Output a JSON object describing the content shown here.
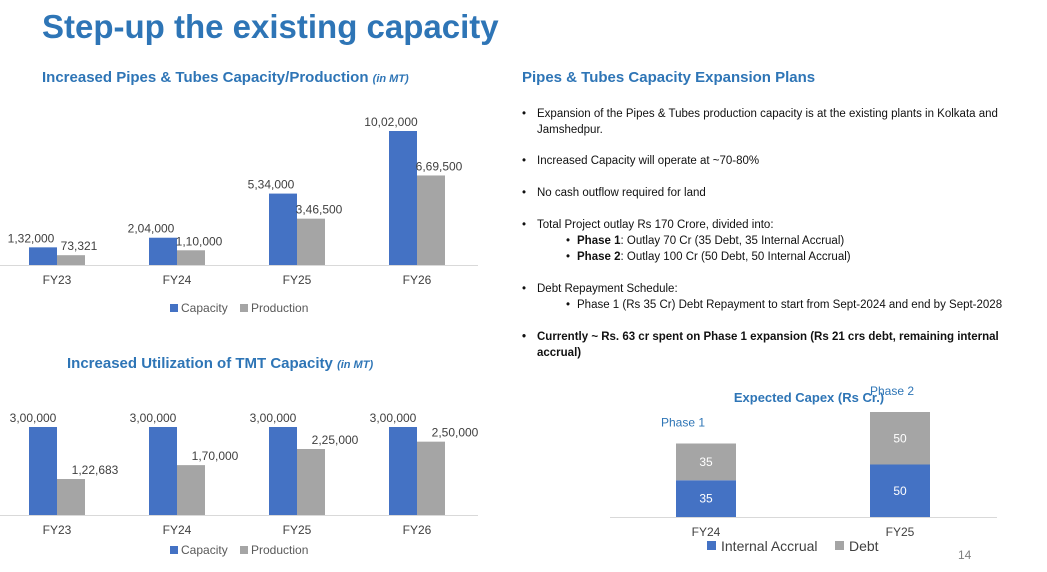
{
  "page": {
    "title": "Step-up the existing capacity",
    "page_number": "14"
  },
  "colors": {
    "capacity": "#4472c4",
    "production": "#a5a5a5",
    "accent": "#2e75b6"
  },
  "pipes_chart": {
    "title": "Increased Pipes & Tubes Capacity/Production",
    "unit": "(in MT)"
  },
  "tmt_chart": {
    "title": "Increased Utilization of TMT Capacity",
    "unit": "(in MT)"
  },
  "plans": {
    "heading": "Pipes & Tubes Capacity Expansion Plans",
    "b1": "Expansion of the Pipes & Tubes production capacity is at the existing plants in Kolkata and Jamshedpur.",
    "b2": "Increased Capacity will operate at ~70-80%",
    "b3": "No cash outflow required for land",
    "b4": "Total Project outlay Rs 170 Crore, divided into:",
    "phase1_label": "Phase 1",
    "phase1_text": ": Outlay 70 Cr (35 Debt, 35 Internal Accrual)",
    "phase2_label": "Phase 2",
    "phase2_text": ": Outlay 100 Cr (50 Debt, 50 Internal Accrual)",
    "b5": "Debt Repayment Schedule:",
    "b5_sub": "Phase 1 (Rs 35 Cr) Debt Repayment to start from Sept-2024 and end by Sept-2028",
    "b6": "Currently ~ Rs. 63 cr spent on Phase 1 expansion (Rs 21 crs debt, remaining internal accrual)"
  },
  "chart_data": [
    {
      "type": "bar",
      "title": "Increased Pipes & Tubes Capacity/Production (in MT)",
      "categories": [
        "FY23",
        "FY24",
        "FY25",
        "FY26"
      ],
      "series": [
        {
          "name": "Capacity",
          "values": [
            132000,
            204000,
            534000,
            1002000
          ],
          "labels": [
            "1,32,000",
            "2,04,000",
            "5,34,000",
            "10,02,000"
          ]
        },
        {
          "name": "Production",
          "values": [
            73321,
            110000,
            346500,
            669500
          ],
          "labels": [
            "73,321",
            "1,10,000",
            "3,46,500",
            "6,69,500"
          ]
        }
      ],
      "ylim": [
        0,
        1002000
      ],
      "legend": "bottom"
    },
    {
      "type": "bar",
      "title": "Increased Utilization of TMT Capacity (in MT)",
      "categories": [
        "FY23",
        "FY24",
        "FY25",
        "FY26"
      ],
      "series": [
        {
          "name": "Capacity",
          "values": [
            300000,
            300000,
            300000,
            300000
          ],
          "labels": [
            "3,00,000",
            "3,00,000",
            "3,00,000",
            "3,00,000"
          ]
        },
        {
          "name": "Production",
          "values": [
            122683,
            170000,
            225000,
            250000
          ],
          "labels": [
            "1,22,683",
            "1,70,000",
            "2,25,000",
            "2,50,000"
          ]
        }
      ],
      "ylim": [
        0,
        300000
      ],
      "legend": "bottom"
    },
    {
      "type": "bar",
      "stacked": true,
      "title": "Expected Capex (Rs Cr.)",
      "categories": [
        "FY24",
        "FY25"
      ],
      "category_notes": [
        "Phase 1",
        "Phase 2"
      ],
      "series": [
        {
          "name": "Internal Accrual",
          "values": [
            35,
            50
          ],
          "labels": [
            "35",
            "50"
          ]
        },
        {
          "name": "Debt",
          "values": [
            35,
            50
          ],
          "labels": [
            "35",
            "50"
          ]
        }
      ],
      "ylim": [
        0,
        100
      ],
      "legend": "bottom"
    }
  ]
}
